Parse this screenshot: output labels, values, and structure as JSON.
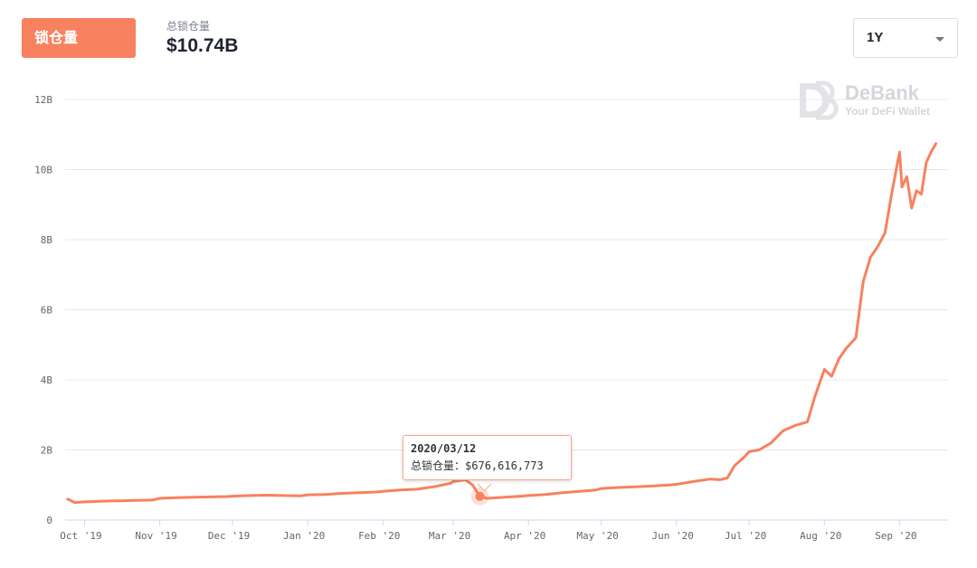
{
  "header": {
    "tab_label": "锁仓量",
    "stat_label": "总锁仓量",
    "stat_value": "$10.74B",
    "period": "1Y"
  },
  "brand": {
    "name": "DeBank",
    "tagline": "Your DeFi Wallet"
  },
  "tooltip": {
    "date": "2020/03/12",
    "label": "总锁仓量：",
    "value": "$676,616,773"
  },
  "chart_data": {
    "type": "line",
    "title": "",
    "xlabel": "",
    "ylabel": "",
    "line_color": "#f8815f",
    "grid": "horizontal",
    "x_ticks": [
      "Oct '19",
      "Nov '19",
      "Dec '19",
      "Jan '20",
      "Feb '20",
      "Mar '20",
      "Apr '20",
      "May '20",
      "Jun '20",
      "Jul '20",
      "Aug '20",
      "Sep '20"
    ],
    "y_ticks": [
      "0",
      "2B",
      "4B",
      "6B",
      "8B",
      "10B",
      "12B"
    ],
    "ylim": [
      0,
      12000000000
    ],
    "series": [
      {
        "x": [
          "2019-09-24",
          "2019-09-27",
          "2019-10-01",
          "2019-10-08",
          "2019-10-15",
          "2019-10-22",
          "2019-10-29",
          "2019-11-01",
          "2019-11-08",
          "2019-11-15",
          "2019-11-22",
          "2019-11-29",
          "2019-12-01",
          "2019-12-08",
          "2019-12-15",
          "2019-12-22",
          "2019-12-29",
          "2020-01-01",
          "2020-01-08",
          "2020-01-15",
          "2020-01-22",
          "2020-01-29",
          "2020-02-01",
          "2020-02-08",
          "2020-02-15",
          "2020-02-22",
          "2020-02-29",
          "2020-03-01",
          "2020-03-06",
          "2020-03-09",
          "2020-03-12",
          "2020-03-15",
          "2020-03-22",
          "2020-03-29",
          "2020-04-01",
          "2020-04-08",
          "2020-04-15",
          "2020-04-22",
          "2020-04-29",
          "2020-05-01",
          "2020-05-08",
          "2020-05-15",
          "2020-05-22",
          "2020-05-29",
          "2020-06-01",
          "2020-06-08",
          "2020-06-15",
          "2020-06-19",
          "2020-06-22",
          "2020-06-25",
          "2020-06-29",
          "2020-07-01",
          "2020-07-05",
          "2020-07-10",
          "2020-07-15",
          "2020-07-20",
          "2020-07-25",
          "2020-07-28",
          "2020-08-01",
          "2020-08-04",
          "2020-08-07",
          "2020-08-10",
          "2020-08-14",
          "2020-08-17",
          "2020-08-20",
          "2020-08-23",
          "2020-08-26",
          "2020-08-29",
          "2020-09-01",
          "2020-09-02",
          "2020-09-04",
          "2020-09-06",
          "2020-09-08",
          "2020-09-10",
          "2020-09-12",
          "2020-09-14",
          "2020-09-16"
        ],
        "values": [
          600000000,
          500000000,
          520000000,
          540000000,
          550000000,
          560000000,
          570000000,
          620000000,
          640000000,
          650000000,
          660000000,
          670000000,
          680000000,
          700000000,
          710000000,
          700000000,
          690000000,
          720000000,
          730000000,
          760000000,
          780000000,
          800000000,
          820000000,
          860000000,
          880000000,
          950000000,
          1050000000,
          1100000000,
          1150000000,
          1000000000,
          676616773,
          620000000,
          650000000,
          680000000,
          700000000,
          730000000,
          780000000,
          820000000,
          860000000,
          900000000,
          930000000,
          950000000,
          970000000,
          1000000000,
          1020000000,
          1100000000,
          1170000000,
          1150000000,
          1200000000,
          1550000000,
          1800000000,
          1950000000,
          2000000000,
          2200000000,
          2550000000,
          2700000000,
          2800000000,
          3500000000,
          4300000000,
          4100000000,
          4600000000,
          4900000000,
          5200000000,
          6800000000,
          7500000000,
          7800000000,
          8200000000,
          9400000000,
          10500000000,
          9500000000,
          9800000000,
          8900000000,
          9400000000,
          9300000000,
          10200000000,
          10500000000,
          10740000000
        ]
      }
    ]
  }
}
